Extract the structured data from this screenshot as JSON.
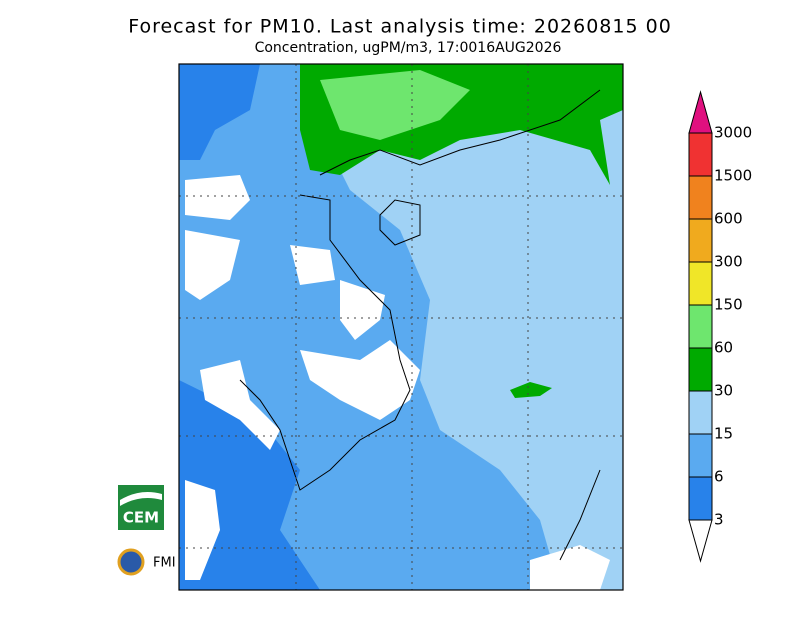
{
  "header": {
    "title": "Forecast for PM10. Last analysis time: 20260815 00",
    "subtitle": "Concentration, ugPM/m3, 17:0016AUG2026"
  },
  "legend": {
    "levels": [
      3000,
      1500,
      600,
      300,
      150,
      60,
      30,
      15,
      6,
      3
    ],
    "colors": [
      "#e0107f",
      "#f03232",
      "#f0821e",
      "#f0aa1e",
      "#f0e628",
      "#6ee66e",
      "#00aa00",
      "#a0d2f5",
      "#5aaaf0",
      "#2882ea",
      "#ffffff"
    ]
  },
  "logos": {
    "cem": "CEM",
    "fmi": "FMI"
  }
}
